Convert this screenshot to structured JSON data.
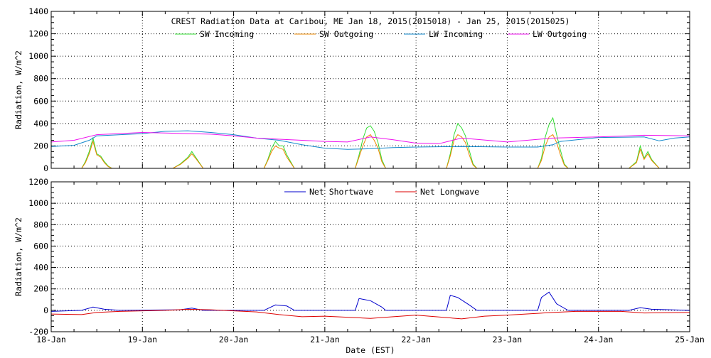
{
  "chart_data": [
    {
      "type": "line",
      "title": "CREST Radiation Data at Caribou, ME   Jan 18, 2015(2015018) - Jan 25, 2015(2015025)",
      "ylabel": "Radiation, W/m^2",
      "xlim": [
        "2015-01-18",
        "2015-01-25"
      ],
      "ylim": [
        0,
        1400
      ],
      "yticks": [
        0,
        200,
        400,
        600,
        800,
        1000,
        1200,
        1400
      ],
      "xticks": [
        "18-Jan",
        "19-Jan",
        "20-Jan",
        "21-Jan",
        "22-Jan",
        "23-Jan",
        "24-Jan",
        "25-Jan"
      ],
      "grid": "dotted",
      "legend_placement": "top",
      "series": [
        {
          "name": "SW Incoming",
          "color": "#33dd33",
          "x": [
            "2015-01-18 08:00",
            "2015-01-18 09:00",
            "2015-01-18 10:00",
            "2015-01-18 11:00",
            "2015-01-18 12:00",
            "2015-01-18 13:00",
            "2015-01-18 14:00",
            "2015-01-18 15:00",
            "2015-01-18 16:00",
            "2015-01-19 08:00",
            "2015-01-19 10:00",
            "2015-01-19 12:00",
            "2015-01-19 13:00",
            "2015-01-19 14:00",
            "2015-01-19 16:00",
            "2015-01-20 08:00",
            "2015-01-20 09:00",
            "2015-01-20 10:00",
            "2015-01-20 11:00",
            "2015-01-20 12:00",
            "2015-01-20 13:00",
            "2015-01-20 14:00",
            "2015-01-20 16:00",
            "2015-01-21 08:00",
            "2015-01-21 09:00",
            "2015-01-21 10:00",
            "2015-01-21 11:00",
            "2015-01-21 12:00",
            "2015-01-21 13:00",
            "2015-01-21 14:00",
            "2015-01-21 15:00",
            "2015-01-21 16:00",
            "2015-01-22 08:00",
            "2015-01-22 09:00",
            "2015-01-22 10:00",
            "2015-01-22 11:00",
            "2015-01-22 12:00",
            "2015-01-22 13:00",
            "2015-01-22 14:00",
            "2015-01-22 15:00",
            "2015-01-22 16:00",
            "2015-01-23 08:00",
            "2015-01-23 09:00",
            "2015-01-23 10:00",
            "2015-01-23 11:00",
            "2015-01-23 12:00",
            "2015-01-23 13:00",
            "2015-01-23 14:00",
            "2015-01-23 15:00",
            "2015-01-23 16:00",
            "2015-01-24 08:00",
            "2015-01-24 10:00",
            "2015-01-24 11:00",
            "2015-01-24 12:00",
            "2015-01-24 13:00",
            "2015-01-24 14:00",
            "2015-01-24 16:00"
          ],
          "y": [
            0,
            60,
            150,
            270,
            130,
            110,
            60,
            20,
            0,
            0,
            40,
            100,
            150,
            100,
            0,
            0,
            80,
            180,
            240,
            200,
            200,
            120,
            0,
            0,
            120,
            260,
            360,
            380,
            330,
            230,
            80,
            0,
            0,
            130,
            300,
            400,
            360,
            290,
            160,
            40,
            0,
            0,
            90,
            280,
            390,
            450,
            300,
            160,
            40,
            0,
            0,
            60,
            200,
            90,
            150,
            80,
            0
          ]
        },
        {
          "name": "SW Outgoing",
          "color": "#ee8800",
          "x": [
            "2015-01-18 08:00",
            "2015-01-18 09:00",
            "2015-01-18 10:00",
            "2015-01-18 11:00",
            "2015-01-18 12:00",
            "2015-01-18 13:00",
            "2015-01-18 14:00",
            "2015-01-18 15:00",
            "2015-01-18 16:00",
            "2015-01-19 08:00",
            "2015-01-19 10:00",
            "2015-01-19 12:00",
            "2015-01-19 13:00",
            "2015-01-19 14:00",
            "2015-01-19 16:00",
            "2015-01-20 08:00",
            "2015-01-20 09:00",
            "2015-01-20 10:00",
            "2015-01-20 11:00",
            "2015-01-20 12:00",
            "2015-01-20 13:00",
            "2015-01-20 14:00",
            "2015-01-20 16:00",
            "2015-01-21 08:00",
            "2015-01-21 09:00",
            "2015-01-21 10:00",
            "2015-01-21 11:00",
            "2015-01-21 12:00",
            "2015-01-21 13:00",
            "2015-01-21 14:00",
            "2015-01-21 15:00",
            "2015-01-21 16:00",
            "2015-01-22 08:00",
            "2015-01-22 09:00",
            "2015-01-22 10:00",
            "2015-01-22 11:00",
            "2015-01-22 12:00",
            "2015-01-22 13:00",
            "2015-01-22 14:00",
            "2015-01-22 15:00",
            "2015-01-22 16:00",
            "2015-01-23 08:00",
            "2015-01-23 09:00",
            "2015-01-23 10:00",
            "2015-01-23 11:00",
            "2015-01-23 12:00",
            "2015-01-23 13:00",
            "2015-01-23 14:00",
            "2015-01-23 15:00",
            "2015-01-23 16:00",
            "2015-01-24 08:00",
            "2015-01-24 10:00",
            "2015-01-24 11:00",
            "2015-01-24 12:00",
            "2015-01-24 13:00",
            "2015-01-24 14:00",
            "2015-01-24 16:00"
          ],
          "y": [
            0,
            50,
            130,
            240,
            120,
            100,
            50,
            15,
            0,
            0,
            35,
            90,
            130,
            90,
            0,
            0,
            70,
            150,
            200,
            180,
            170,
            100,
            0,
            0,
            100,
            200,
            280,
            300,
            250,
            180,
            60,
            0,
            0,
            110,
            250,
            300,
            280,
            230,
            120,
            30,
            0,
            0,
            70,
            200,
            280,
            300,
            230,
            120,
            30,
            0,
            0,
            50,
            170,
            80,
            130,
            70,
            0
          ]
        },
        {
          "name": "LW Incoming",
          "color": "#1188cc",
          "x": [
            "2015-01-18 00:00",
            "2015-01-18 06:00",
            "2015-01-18 10:00",
            "2015-01-18 12:00",
            "2015-01-19 00:00",
            "2015-01-19 06:00",
            "2015-01-19 12:00",
            "2015-01-19 18:00",
            "2015-01-20 00:00",
            "2015-01-20 06:00",
            "2015-01-20 12:00",
            "2015-01-20 18:00",
            "2015-01-21 00:00",
            "2015-01-21 06:00",
            "2015-01-21 12:00",
            "2015-01-21 18:00",
            "2015-01-22 00:00",
            "2015-01-22 12:00",
            "2015-01-23 00:00",
            "2015-01-23 08:00",
            "2015-01-23 12:00",
            "2015-01-23 14:00",
            "2015-01-24 00:00",
            "2015-01-24 12:00",
            "2015-01-24 16:00",
            "2015-01-24 20:00",
            "2015-01-25 00:00"
          ],
          "y": [
            195,
            205,
            250,
            290,
            310,
            330,
            335,
            320,
            300,
            270,
            250,
            210,
            180,
            170,
            175,
            185,
            190,
            195,
            190,
            190,
            210,
            240,
            275,
            280,
            245,
            270,
            280
          ]
        },
        {
          "name": "LW Outgoing",
          "color": "#ee11ee",
          "x": [
            "2015-01-18 00:00",
            "2015-01-18 06:00",
            "2015-01-18 12:00",
            "2015-01-19 00:00",
            "2015-01-19 06:00",
            "2015-01-19 12:00",
            "2015-01-19 18:00",
            "2015-01-20 00:00",
            "2015-01-20 06:00",
            "2015-01-20 12:00",
            "2015-01-20 18:00",
            "2015-01-21 00:00",
            "2015-01-21 06:00",
            "2015-01-21 12:00",
            "2015-01-21 18:00",
            "2015-01-22 00:00",
            "2015-01-22 06:00",
            "2015-01-22 12:00",
            "2015-01-23 00:00",
            "2015-01-23 12:00",
            "2015-01-24 00:00",
            "2015-01-24 12:00",
            "2015-01-25 00:00"
          ],
          "y": [
            235,
            250,
            300,
            320,
            315,
            310,
            305,
            290,
            270,
            260,
            250,
            240,
            235,
            280,
            255,
            225,
            220,
            270,
            235,
            270,
            280,
            295,
            290
          ]
        }
      ]
    },
    {
      "type": "line",
      "xlabel": "Date (EST)",
      "ylabel": "Radiation, W/m^2",
      "xlim": [
        "2015-01-18",
        "2015-01-25"
      ],
      "ylim": [
        -200,
        1200
      ],
      "yticks": [
        -200,
        0,
        200,
        400,
        600,
        800,
        1000,
        1200
      ],
      "xticks": [
        "18-Jan",
        "19-Jan",
        "20-Jan",
        "21-Jan",
        "22-Jan",
        "23-Jan",
        "24-Jan",
        "25-Jan"
      ],
      "grid": "dotted",
      "legend_placement": "top",
      "series": [
        {
          "name": "Net Shortwave",
          "color": "#0000cc",
          "x": [
            "2015-01-18 00:00",
            "2015-01-18 08:00",
            "2015-01-18 11:00",
            "2015-01-18 14:00",
            "2015-01-18 18:00",
            "2015-01-19 10:00",
            "2015-01-19 13:00",
            "2015-01-19 16:00",
            "2015-01-20 08:00",
            "2015-01-20 11:00",
            "2015-01-20 14:00",
            "2015-01-20 16:00",
            "2015-01-21 08:00",
            "2015-01-21 09:00",
            "2015-01-21 12:00",
            "2015-01-21 15:00",
            "2015-01-21 16:00",
            "2015-01-22 08:00",
            "2015-01-22 09:00",
            "2015-01-22 11:00",
            "2015-01-22 14:00",
            "2015-01-22 16:00",
            "2015-01-23 08:00",
            "2015-01-23 09:00",
            "2015-01-23 11:00",
            "2015-01-23 13:00",
            "2015-01-23 16:00",
            "2015-01-24 08:00",
            "2015-01-24 11:00",
            "2015-01-24 14:00",
            "2015-01-25 00:00"
          ],
          "y": [
            -10,
            0,
            30,
            10,
            0,
            5,
            20,
            0,
            0,
            50,
            40,
            0,
            0,
            110,
            90,
            30,
            0,
            0,
            140,
            120,
            50,
            0,
            0,
            120,
            170,
            60,
            0,
            0,
            25,
            10,
            0
          ]
        },
        {
          "name": "Net Longwave",
          "color": "#dd0000",
          "x": [
            "2015-01-18 00:00",
            "2015-01-18 08:00",
            "2015-01-18 12:00",
            "2015-01-18 18:00",
            "2015-01-19 06:00",
            "2015-01-19 12:00",
            "2015-01-19 18:00",
            "2015-01-20 06:00",
            "2015-01-20 12:00",
            "2015-01-20 18:00",
            "2015-01-21 00:00",
            "2015-01-21 12:00",
            "2015-01-21 18:00",
            "2015-01-22 00:00",
            "2015-01-22 12:00",
            "2015-01-22 18:00",
            "2015-01-23 00:00",
            "2015-01-23 12:00",
            "2015-01-23 18:00",
            "2015-01-24 06:00",
            "2015-01-24 12:00",
            "2015-01-25 00:00"
          ],
          "y": [
            -35,
            -40,
            -20,
            -10,
            0,
            10,
            5,
            -15,
            -40,
            -60,
            -55,
            -75,
            -60,
            -45,
            -80,
            -55,
            -45,
            -20,
            -10,
            -10,
            -25,
            -20
          ]
        }
      ]
    }
  ]
}
